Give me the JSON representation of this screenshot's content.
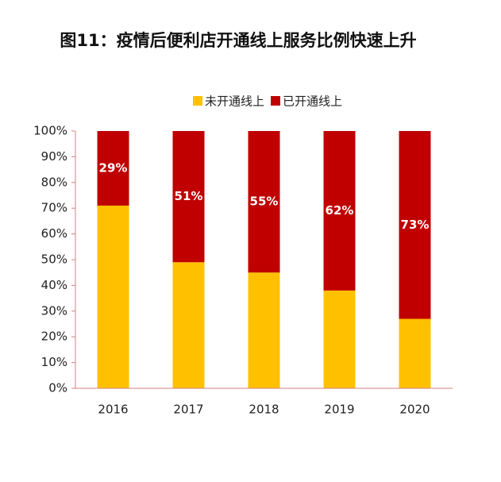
{
  "chart_data": {
    "type": "stacked-bar",
    "title": "图11：疫情后便利店开通线上服务比例快速上升",
    "categories": [
      "2016",
      "2017",
      "2018",
      "2019",
      "2020"
    ],
    "series": [
      {
        "name": "未开通线上",
        "color": "#FFC000",
        "values": [
          71,
          49,
          45,
          38,
          27
        ]
      },
      {
        "name": "已开通线上",
        "color": "#C00000",
        "values": [
          29,
          51,
          55,
          62,
          73
        ],
        "value_labels": [
          "29%",
          "51%",
          "55%",
          "62%",
          "73%"
        ]
      }
    ],
    "ylim": [
      0,
      100
    ],
    "yticks": [
      {
        "value": 0,
        "label": "0%"
      },
      {
        "value": 10,
        "label": "10%"
      },
      {
        "value": 20,
        "label": "20%"
      },
      {
        "value": 30,
        "label": "30%"
      },
      {
        "value": 40,
        "label": "40%"
      },
      {
        "value": 50,
        "label": "50%"
      },
      {
        "value": 60,
        "label": "60%"
      },
      {
        "value": 70,
        "label": "70%"
      },
      {
        "value": 80,
        "label": "80%"
      },
      {
        "value": 90,
        "label": "90%"
      },
      {
        "value": 100,
        "label": "100%"
      }
    ],
    "legend": "top"
  }
}
